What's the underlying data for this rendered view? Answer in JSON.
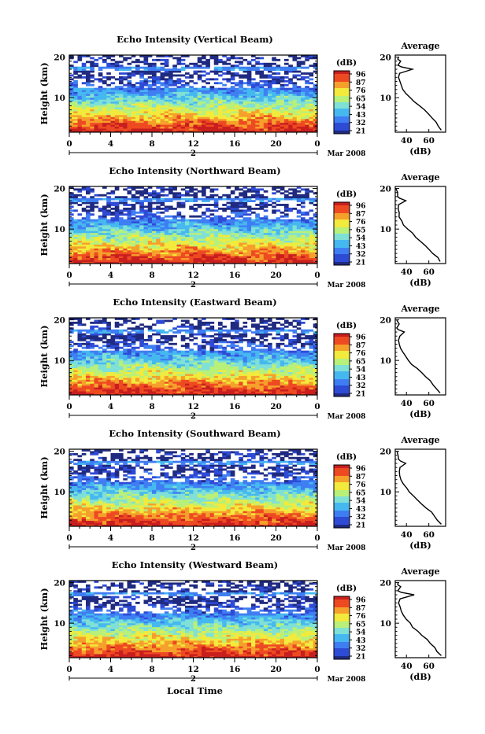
{
  "chart_data": [
    {
      "type": "heatmap",
      "title": "Echo Intensity (Vertical Beam)",
      "ylabel": "Height (km)",
      "x_ticks": [
        "0",
        "4",
        "8",
        "12",
        "16",
        "20",
        "0"
      ],
      "y_ticks": [
        "10",
        "20"
      ],
      "xlim": [
        0,
        24
      ],
      "ylim": [
        1.5,
        20.5
      ],
      "date_label": "2",
      "date_suffix": "Mar 2008",
      "colorbar": {
        "label": "(dB)",
        "ticks": [
          "96",
          "87",
          "76",
          "65",
          "54",
          "43",
          "32",
          "21"
        ],
        "range": [
          21,
          96
        ]
      },
      "profile": {
        "title": "Average",
        "ylim": [
          1.5,
          20.5
        ],
        "y_ticks": [
          "10",
          "20"
        ],
        "x_ticks": [
          "40",
          "60"
        ],
        "xlabel": "(dB)",
        "xlim": [
          30,
          75
        ],
        "values": [
          {
            "h": 2,
            "db": 71
          },
          {
            "h": 3,
            "db": 68
          },
          {
            "h": 4,
            "db": 66
          },
          {
            "h": 5,
            "db": 63
          },
          {
            "h": 6,
            "db": 60
          },
          {
            "h": 7,
            "db": 56
          },
          {
            "h": 8,
            "db": 52
          },
          {
            "h": 9,
            "db": 47
          },
          {
            "h": 10,
            "db": 43
          },
          {
            "h": 11,
            "db": 40
          },
          {
            "h": 12,
            "db": 37
          },
          {
            "h": 13,
            "db": 35
          },
          {
            "h": 14,
            "db": 34
          },
          {
            "h": 15,
            "db": 33
          },
          {
            "h": 16,
            "db": 34
          },
          {
            "h": 17,
            "db": 45
          },
          {
            "h": 17.6,
            "db": 35
          },
          {
            "h": 18,
            "db": 33
          },
          {
            "h": 19,
            "db": 35
          },
          {
            "h": 19.5,
            "db": 32
          },
          {
            "h": 20,
            "db": 33
          }
        ]
      }
    },
    {
      "type": "heatmap",
      "title": "Echo Intensity (Northward Beam)",
      "ylabel": "Height (km)",
      "x_ticks": [
        "0",
        "4",
        "8",
        "12",
        "16",
        "20",
        "0"
      ],
      "y_ticks": [
        "10",
        "20"
      ],
      "xlim": [
        0,
        24
      ],
      "ylim": [
        1.5,
        20.5
      ],
      "date_label": "2",
      "date_suffix": "Mar 2008",
      "colorbar": {
        "label": "(dB)",
        "ticks": [
          "96",
          "87",
          "76",
          "65",
          "54",
          "43",
          "32",
          "21"
        ],
        "range": [
          21,
          96
        ]
      },
      "profile": {
        "title": "Average",
        "ylim": [
          1.5,
          20.5
        ],
        "y_ticks": [
          "10",
          "20"
        ],
        "x_ticks": [
          "40",
          "60"
        ],
        "xlabel": "(dB)",
        "xlim": [
          30,
          75
        ],
        "values": [
          {
            "h": 2,
            "db": 70
          },
          {
            "h": 3,
            "db": 68
          },
          {
            "h": 4,
            "db": 64
          },
          {
            "h": 5,
            "db": 60
          },
          {
            "h": 6,
            "db": 56
          },
          {
            "h": 7,
            "db": 52
          },
          {
            "h": 8,
            "db": 48
          },
          {
            "h": 9,
            "db": 45
          },
          {
            "h": 10,
            "db": 41
          },
          {
            "h": 11,
            "db": 38
          },
          {
            "h": 12,
            "db": 36
          },
          {
            "h": 13,
            "db": 34
          },
          {
            "h": 14,
            "db": 33
          },
          {
            "h": 15,
            "db": 32
          },
          {
            "h": 16,
            "db": 33
          },
          {
            "h": 17,
            "db": 40
          },
          {
            "h": 17.6,
            "db": 34
          },
          {
            "h": 18,
            "db": 32
          },
          {
            "h": 19,
            "db": 32
          },
          {
            "h": 20,
            "db": 31
          }
        ]
      }
    },
    {
      "type": "heatmap",
      "title": "Echo Intensity (Eastward Beam)",
      "ylabel": "Height (km)",
      "x_ticks": [
        "0",
        "4",
        "8",
        "12",
        "16",
        "20",
        "0"
      ],
      "y_ticks": [
        "10",
        "20"
      ],
      "xlim": [
        0,
        24
      ],
      "ylim": [
        1.5,
        20.5
      ],
      "date_label": "2",
      "date_suffix": "Mar 2008",
      "colorbar": {
        "label": "(dB)",
        "ticks": [
          "96",
          "87",
          "76",
          "65",
          "54",
          "43",
          "32",
          "21"
        ],
        "range": [
          21,
          96
        ]
      },
      "profile": {
        "title": "Average",
        "ylim": [
          1.5,
          20.5
        ],
        "y_ticks": [
          "10",
          "20"
        ],
        "x_ticks": [
          "40",
          "60"
        ],
        "xlabel": "(dB)",
        "xlim": [
          30,
          75
        ],
        "values": [
          {
            "h": 2,
            "db": 70
          },
          {
            "h": 3,
            "db": 67
          },
          {
            "h": 4,
            "db": 64
          },
          {
            "h": 5,
            "db": 61
          },
          {
            "h": 6,
            "db": 57
          },
          {
            "h": 7,
            "db": 53
          },
          {
            "h": 8,
            "db": 49
          },
          {
            "h": 9,
            "db": 45
          },
          {
            "h": 10,
            "db": 42
          },
          {
            "h": 11,
            "db": 39
          },
          {
            "h": 12,
            "db": 37
          },
          {
            "h": 13,
            "db": 35
          },
          {
            "h": 14,
            "db": 34
          },
          {
            "h": 15,
            "db": 33
          },
          {
            "h": 16,
            "db": 34
          },
          {
            "h": 17,
            "db": 38
          },
          {
            "h": 17.6,
            "db": 33
          },
          {
            "h": 18,
            "db": 32
          },
          {
            "h": 19,
            "db": 33
          },
          {
            "h": 20,
            "db": 31
          }
        ]
      }
    },
    {
      "type": "heatmap",
      "title": "Echo Intensity (Southward Beam)",
      "ylabel": "Height (km)",
      "x_ticks": [
        "0",
        "4",
        "8",
        "12",
        "16",
        "20",
        "0"
      ],
      "y_ticks": [
        "10",
        "20"
      ],
      "xlim": [
        0,
        24
      ],
      "ylim": [
        1.5,
        20.5
      ],
      "date_label": "2",
      "date_suffix": "Mar 2008",
      "colorbar": {
        "label": "(dB)",
        "ticks": [
          "96",
          "87",
          "76",
          "65",
          "54",
          "43",
          "32",
          "21"
        ],
        "range": [
          21,
          96
        ]
      },
      "profile": {
        "title": "Average",
        "ylim": [
          1.5,
          20.5
        ],
        "y_ticks": [
          "10",
          "20"
        ],
        "x_ticks": [
          "40",
          "60"
        ],
        "xlabel": "(dB)",
        "xlim": [
          30,
          75
        ],
        "values": [
          {
            "h": 2,
            "db": 71
          },
          {
            "h": 3,
            "db": 68
          },
          {
            "h": 4,
            "db": 65
          },
          {
            "h": 5,
            "db": 62
          },
          {
            "h": 6,
            "db": 58
          },
          {
            "h": 7,
            "db": 54
          },
          {
            "h": 8,
            "db": 50
          },
          {
            "h": 9,
            "db": 46
          },
          {
            "h": 10,
            "db": 43
          },
          {
            "h": 11,
            "db": 40
          },
          {
            "h": 12,
            "db": 37
          },
          {
            "h": 13,
            "db": 35
          },
          {
            "h": 14,
            "db": 34
          },
          {
            "h": 15,
            "db": 33
          },
          {
            "h": 16,
            "db": 34
          },
          {
            "h": 17,
            "db": 40
          },
          {
            "h": 17.6,
            "db": 34
          },
          {
            "h": 18,
            "db": 33
          },
          {
            "h": 19,
            "db": 33
          },
          {
            "h": 20,
            "db": 32
          }
        ]
      }
    },
    {
      "type": "heatmap",
      "title": "Echo Intensity (Westward Beam)",
      "ylabel": "Height (km)",
      "x_ticks": [
        "0",
        "4",
        "8",
        "12",
        "16",
        "20",
        "0"
      ],
      "y_ticks": [
        "10",
        "20"
      ],
      "xlim": [
        0,
        24
      ],
      "ylim": [
        1.5,
        20.5
      ],
      "date_label": "2",
      "date_suffix": "Mar 2008",
      "xlabel": "Local Time",
      "colorbar": {
        "label": "(dB)",
        "ticks": [
          "96",
          "87",
          "76",
          "65",
          "54",
          "43",
          "32",
          "21"
        ],
        "range": [
          21,
          96
        ]
      },
      "profile": {
        "title": "Average",
        "ylim": [
          1.5,
          20.5
        ],
        "y_ticks": [
          "10",
          "20"
        ],
        "x_ticks": [
          "40",
          "60"
        ],
        "xlabel": "(dB)",
        "xlim": [
          30,
          75
        ],
        "values": [
          {
            "h": 2,
            "db": 71
          },
          {
            "h": 3,
            "db": 68
          },
          {
            "h": 4,
            "db": 65
          },
          {
            "h": 5,
            "db": 62
          },
          {
            "h": 6,
            "db": 58
          },
          {
            "h": 7,
            "db": 54
          },
          {
            "h": 8,
            "db": 50
          },
          {
            "h": 9,
            "db": 46
          },
          {
            "h": 10,
            "db": 43
          },
          {
            "h": 11,
            "db": 40
          },
          {
            "h": 12,
            "db": 37
          },
          {
            "h": 13,
            "db": 35
          },
          {
            "h": 14,
            "db": 34
          },
          {
            "h": 15,
            "db": 33
          },
          {
            "h": 16,
            "db": 34
          },
          {
            "h": 17,
            "db": 47
          },
          {
            "h": 17.6,
            "db": 35
          },
          {
            "h": 18,
            "db": 33
          },
          {
            "h": 19,
            "db": 35
          },
          {
            "h": 19.5,
            "db": 32
          },
          {
            "h": 20,
            "db": 33
          }
        ]
      }
    }
  ],
  "colors": {
    "colormap": [
      "#1f2a80",
      "#2e4bd6",
      "#3f7ef2",
      "#46b8f0",
      "#7fe0d6",
      "#b8f07a",
      "#f2ea3c",
      "#f6a02c",
      "#ee4a22",
      "#c81e1e"
    ]
  }
}
